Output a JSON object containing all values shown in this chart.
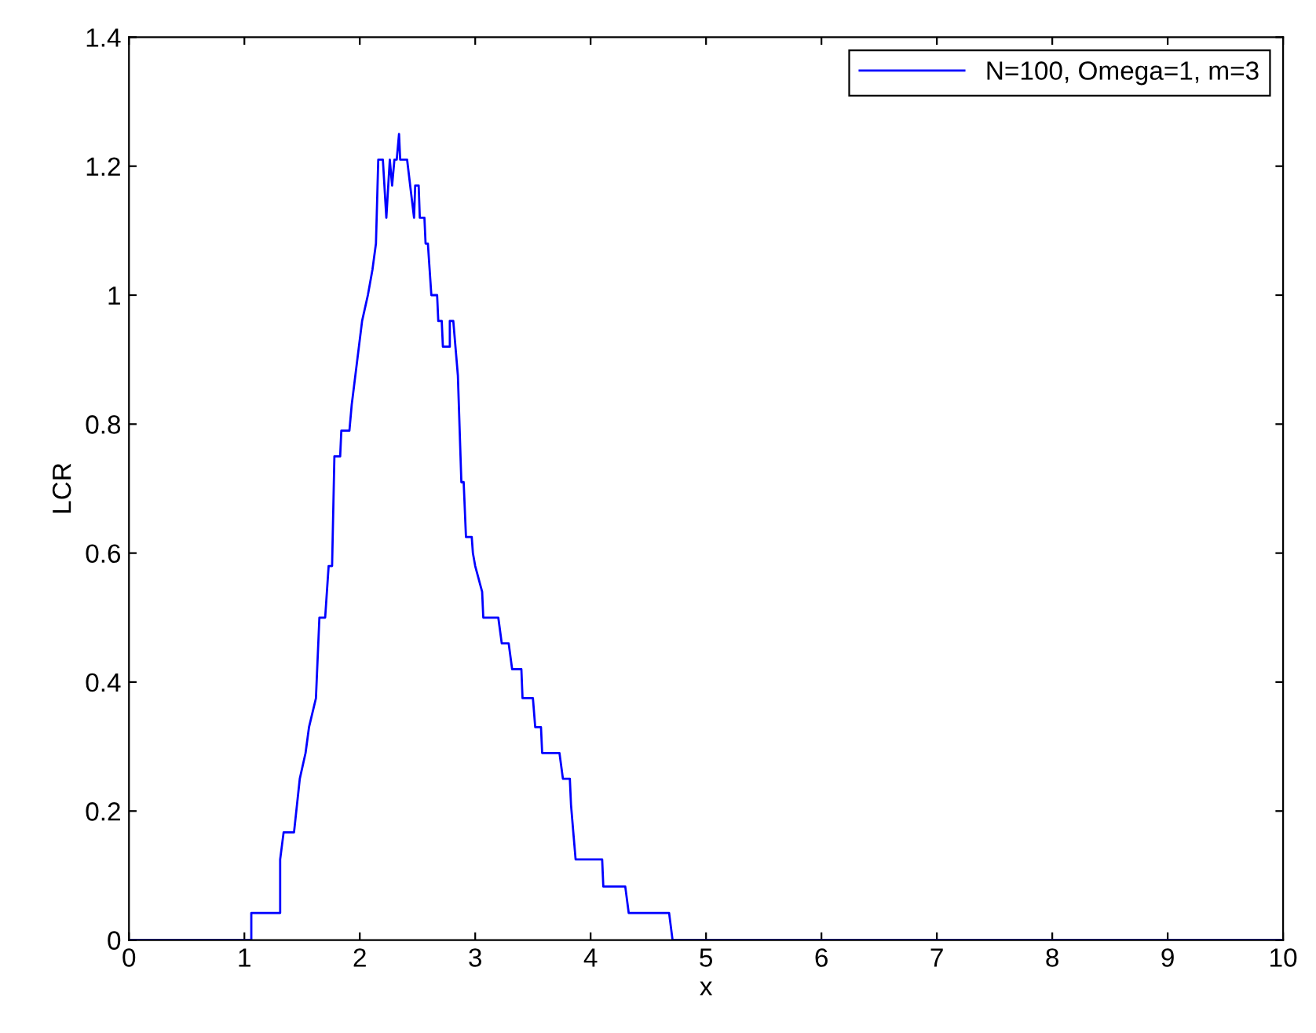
{
  "chart_data": {
    "type": "line",
    "xlabel": "x",
    "ylabel": "LCR",
    "xlim": [
      0,
      10
    ],
    "xticks": [
      0,
      1,
      2,
      3,
      4,
      5,
      6,
      7,
      8,
      9,
      10
    ],
    "ylim": [
      0,
      1.4
    ],
    "yticks": [
      0,
      0.2,
      0.4,
      0.6,
      0.8,
      1,
      1.2,
      1.4
    ],
    "grid": false,
    "legend": "top right",
    "marker": "none",
    "line_style": "solid",
    "series": [
      {
        "name": "N=100, Omega=1, m=3",
        "color": "#0000ff",
        "x": [
          0,
          1.06,
          1.06,
          1.31,
          1.31,
          1.34,
          1.43,
          1.48,
          1.53,
          1.56,
          1.62,
          1.65,
          1.7,
          1.73,
          1.76,
          1.78,
          1.83,
          1.84,
          1.91,
          1.93,
          2.02,
          2.07,
          2.11,
          2.14,
          2.16,
          2.2,
          2.23,
          2.26,
          2.28,
          2.3,
          2.32,
          2.34,
          2.35,
          2.41,
          2.47,
          2.48,
          2.51,
          2.52,
          2.56,
          2.57,
          2.59,
          2.62,
          2.67,
          2.68,
          2.71,
          2.72,
          2.78,
          2.78,
          2.81,
          2.85,
          2.88,
          2.9,
          2.92,
          2.97,
          2.98,
          3.0,
          3.06,
          3.07,
          3.2,
          3.23,
          3.29,
          3.32,
          3.4,
          3.41,
          3.5,
          3.52,
          3.57,
          3.58,
          3.73,
          3.76,
          3.82,
          3.83,
          3.85,
          3.87,
          4.1,
          4.11,
          4.3,
          4.33,
          4.68,
          4.71,
          10
        ],
        "values": [
          0,
          0,
          0.042,
          0.042,
          0.125,
          0.167,
          0.167,
          0.25,
          0.29,
          0.33,
          0.375,
          0.5,
          0.5,
          0.58,
          0.58,
          0.75,
          0.75,
          0.79,
          0.79,
          0.83,
          0.96,
          1.0,
          1.04,
          1.08,
          1.21,
          1.21,
          1.12,
          1.21,
          1.17,
          1.21,
          1.21,
          1.25,
          1.21,
          1.21,
          1.12,
          1.17,
          1.17,
          1.12,
          1.12,
          1.08,
          1.08,
          1.0,
          1.0,
          0.96,
          0.96,
          0.92,
          0.92,
          0.96,
          0.96,
          0.875,
          0.71,
          0.71,
          0.625,
          0.625,
          0.6,
          0.58,
          0.54,
          0.5,
          0.5,
          0.46,
          0.46,
          0.42,
          0.42,
          0.375,
          0.375,
          0.33,
          0.33,
          0.29,
          0.29,
          0.25,
          0.25,
          0.21,
          0.167,
          0.125,
          0.125,
          0.083,
          0.083,
          0.042,
          0.042,
          0,
          0
        ]
      }
    ]
  }
}
